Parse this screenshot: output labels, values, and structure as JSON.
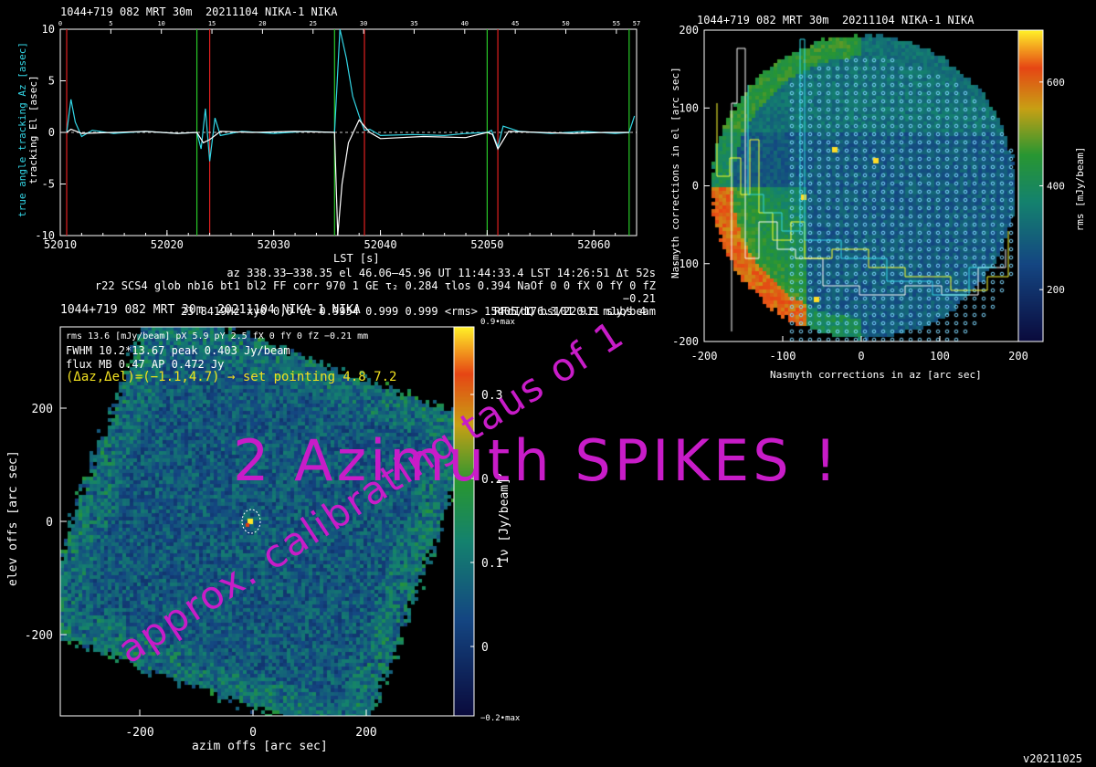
{
  "panel1": {
    "title": "1044+719 082 MRT 30m  20211104 NIKA-1 NIKA",
    "ylabel_az": "true angle tracking Az [asec]",
    "ylabel_el": "tracking El [asec]",
    "xlabel": "LST [s]",
    "colors": {
      "az": "#33d6e6",
      "el": "#ffffff",
      "red": "#e02020",
      "green": "#28c828"
    }
  },
  "info_lines": [
    "az 338.33–338.35 el 46.06–45.96 UT 11:44:33.4 LST 14:26:51 Δt 52s",
    "r22 SCS4 glob nb16 bt1 bl2 FF corr 970 1 GE τ₂ 0.284 τlos 0.394 NaOf 0 0 fX 0 fY 0 fZ −0.21",
    "23.8419Hz xy0 0,0 cc 0.9954 0.999 0.999 <rms> 15405/176.3/220.5 mJy/beam",
    "RFdIdQ bs101 911 subs 4"
  ],
  "panel3": {
    "title": "1044+719 082 MRT 30m  20211104 NIKA-1 NIKA",
    "stats": [
      "rms 13.6 [mJy/beam] pX 5.9 pY 2.5 fX 0 fY 0 fZ −0.21 mm",
      "FWHM 10.2*13.67 peak 0.403 Jy/beam",
      "flux MB 0.47 AP 0.472 Jy"
    ],
    "pointing": "(Δaz,Δel)=(−1.1,4.7) → set pointing 4.8 7.2",
    "xlabel": "azim offs [arc sec]",
    "ylabel": "elev offs [arc sec]",
    "cbar_label": "Iν [Jy/beam]",
    "cbar_top": "0.9•max",
    "cbar_bottom": "−0.2•max"
  },
  "panel2": {
    "title": "1044+719 082 MRT 30m  20211104 NIKA-1 NIKA",
    "xlabel": "Nasmyth corrections in az [arc sec]",
    "ylabel": "Nasmyth corrections in el [arc sec]",
    "cbar_label": "rms [mJy/beam]"
  },
  "overlays": {
    "spikes": "2 Azimuth SPIKES !",
    "taus": "approx. calibrating taus of 1",
    "color": "#c81cc8"
  },
  "version": "v20211025",
  "chart_data": [
    {
      "type": "line",
      "title": "1044+719 082 MRT 30m  20211104 NIKA-1 NIKA",
      "xlabel": "LST [s]",
      "ylabel": "true angle tracking Az [asec] / tracking El [asec]",
      "xlim": [
        52010,
        52064
      ],
      "ylim": [
        -10,
        10
      ],
      "x_ticks": [
        52010,
        52020,
        52030,
        52040,
        52050,
        52060
      ],
      "y_ticks": [
        -10,
        -5,
        0,
        5,
        10
      ],
      "top_ticks": [
        0,
        5,
        10,
        15,
        20,
        25,
        30,
        35,
        40,
        45,
        50,
        55,
        57
      ],
      "red_markers_lst": [
        52010.6,
        52024.0,
        52038.5,
        52051.0
      ],
      "green_markers_lst": [
        52022.8,
        52035.7,
        52050.0,
        52063.3
      ],
      "series": [
        {
          "name": "Az",
          "color": "#33d6e6",
          "x": [
            52010.6,
            52011.0,
            52011.4,
            52012.0,
            52013,
            52015,
            52018,
            52021,
            52022.8,
            52023.2,
            52023.6,
            52024.0,
            52024.5,
            52025,
            52027,
            52030,
            52033,
            52035.7,
            52036.2,
            52036.8,
            52037.4,
            52038.0,
            52038.5,
            52039,
            52040,
            52043,
            52046,
            52048,
            52050.0,
            52050.4,
            52051.0,
            52051.5,
            52053,
            52056,
            52059,
            52062,
            52063.3,
            52063.8
          ],
          "y": [
            0.0,
            3.2,
            1.0,
            -0.4,
            0.2,
            -0.1,
            0.1,
            -0.1,
            0.0,
            -1.6,
            2.3,
            -2.8,
            1.4,
            -0.3,
            0.1,
            -0.1,
            0.1,
            0.0,
            10.0,
            7.2,
            3.5,
            1.6,
            0.2,
            0.3,
            -0.3,
            -0.2,
            -0.3,
            -0.1,
            0.0,
            0.2,
            -1.4,
            0.6,
            0.1,
            -0.1,
            0.1,
            -0.1,
            0.0,
            1.6
          ]
        },
        {
          "name": "El",
          "color": "#ffffff",
          "x": [
            52010.6,
            52011.0,
            52012,
            52015,
            52018,
            52021,
            52022.8,
            52023.4,
            52024.0,
            52025,
            52028,
            52032,
            52035.7,
            52036.0,
            52036.4,
            52037.0,
            52038.0,
            52039,
            52040,
            52044,
            52048,
            52050.0,
            52050.5,
            52051.0,
            52052,
            52055,
            52058,
            52061,
            52063.3
          ],
          "y": [
            0.0,
            0.3,
            -0.1,
            0.0,
            0.1,
            -0.1,
            0.0,
            -1.0,
            -0.7,
            0.1,
            0.0,
            0.1,
            0.0,
            -10.0,
            -5.0,
            -1.0,
            1.2,
            0.0,
            -0.6,
            -0.4,
            -0.5,
            0.0,
            -0.2,
            -1.6,
            0.1,
            0.0,
            -0.1,
            0.0,
            0.0
          ]
        }
      ]
    },
    {
      "type": "heatmap",
      "title": "1044+719 082 MRT 30m  20211104 NIKA-1 NIKA",
      "xlabel": "azim offs [arc sec]",
      "ylabel": "elev offs [arc sec]",
      "x_ticks": [
        -200,
        0,
        200
      ],
      "y_ticks": [
        -200,
        0,
        200
      ],
      "colorbar_ticks": [
        0,
        0.1,
        0.2,
        0.3
      ],
      "colorbar_unit": "Jy/beam",
      "source_offset": [
        -1.1,
        4.7
      ]
    },
    {
      "type": "heatmap",
      "title": "1044+719 082 MRT 30m  20211104 NIKA-1 NIKA",
      "xlabel": "Nasmyth corrections in az [arc sec]",
      "ylabel": "Nasmyth corrections in el [arc sec]",
      "xlim": [
        -200,
        200
      ],
      "ylim": [
        -200,
        200
      ],
      "x_ticks": [
        -200,
        -100,
        0,
        100,
        200
      ],
      "y_ticks": [
        -200,
        -100,
        0,
        100,
        200
      ],
      "colorbar_ticks": [
        200,
        400,
        600
      ],
      "colorbar_unit": "mJy/beam"
    }
  ]
}
